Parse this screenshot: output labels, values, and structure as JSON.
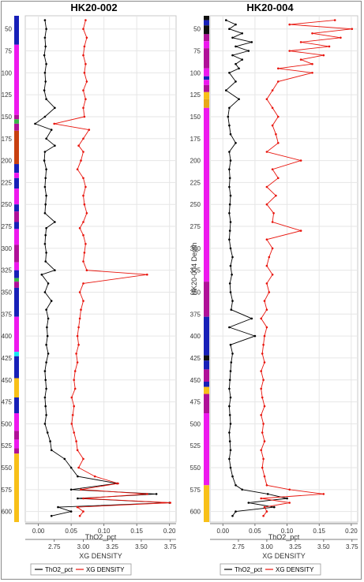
{
  "colors": {
    "thorium": "#000000",
    "density": "#e8140c",
    "lith_blue": "#1720b8",
    "lith_magenta": "#ee18ee",
    "lith_purple": "#b01098",
    "lith_orange": "#c84010",
    "lith_green": "#38b848",
    "lith_yellow": "#f8c018",
    "lith_cyan": "#18e8f0",
    "lith_black": "#101010",
    "lith_gold": "#e8a818"
  },
  "chart_data": [
    {
      "type": "line",
      "title": "HK20-002",
      "ylabel": "",
      "y_reversed": true,
      "ylim": [
        35,
        612
      ],
      "yticks": [
        50,
        75,
        100,
        125,
        150,
        175,
        200,
        225,
        250,
        275,
        300,
        325,
        350,
        375,
        400,
        425,
        450,
        475,
        500,
        525,
        550,
        575,
        600
      ],
      "x_axes": [
        {
          "label": "ThO2_pct",
          "lim": [
            -0.02,
            0.21
          ],
          "ticks": [
            0.0,
            0.05,
            0.1,
            0.15,
            0.2
          ],
          "tick_labels": [
            "0.00",
            "0.05",
            "0.10",
            "0.15",
            "0.20"
          ]
        },
        {
          "label": "XG DENSITY",
          "lim": [
            2.5,
            3.8
          ],
          "ticks": [
            2.75,
            3.0,
            3.25,
            3.5,
            3.75
          ],
          "tick_labels": [
            "2.75",
            "3.00",
            "3.25",
            "3.50",
            "3.75"
          ]
        }
      ],
      "series": [
        {
          "name": "ThO2_pct",
          "axis": 0,
          "color": "#000000",
          "depth": [
            40,
            50,
            60,
            70,
            80,
            90,
            100,
            110,
            120,
            130,
            140,
            150,
            158,
            165,
            175,
            183,
            190,
            200,
            210,
            220,
            230,
            240,
            250,
            260,
            270,
            277,
            285,
            295,
            305,
            315,
            325,
            330,
            340,
            350,
            360,
            370,
            380,
            390,
            400,
            410,
            420,
            430,
            440,
            450,
            460,
            470,
            480,
            490,
            500,
            510,
            520,
            530,
            540,
            550,
            560,
            568,
            575,
            580,
            585,
            590,
            595,
            600,
            605
          ],
          "values": [
            0.01,
            0.012,
            0.01,
            0.011,
            0.009,
            0.012,
            0.01,
            0.011,
            0.009,
            0.012,
            0.025,
            0.01,
            -0.005,
            0.02,
            0.012,
            0.025,
            0.01,
            0.009,
            0.012,
            0.011,
            0.01,
            0.012,
            0.011,
            0.01,
            0.025,
            0.012,
            0.011,
            0.01,
            0.012,
            0.011,
            0.025,
            0.005,
            0.015,
            0.01,
            0.02,
            0.012,
            0.015,
            0.013,
            0.014,
            0.012,
            0.015,
            0.012,
            0.01,
            0.011,
            0.012,
            0.01,
            0.011,
            0.012,
            0.01,
            0.014,
            0.018,
            0.02,
            0.04,
            0.05,
            0.06,
            0.12,
            0.05,
            0.18,
            0.06,
            0.2,
            0.03,
            0.05,
            0.02
          ]
        },
        {
          "name": "XG DENSITY",
          "axis": 1,
          "color": "#e8140c",
          "depth": [
            40,
            50,
            60,
            70,
            80,
            90,
            100,
            110,
            120,
            130,
            140,
            150,
            158,
            165,
            175,
            183,
            190,
            200,
            210,
            220,
            230,
            240,
            250,
            260,
            270,
            277,
            285,
            295,
            305,
            315,
            325,
            330,
            340,
            350,
            360,
            370,
            380,
            390,
            400,
            410,
            420,
            430,
            440,
            450,
            460,
            470,
            480,
            490,
            500,
            510,
            520,
            530,
            540,
            550,
            560,
            568,
            575,
            580,
            585,
            590,
            595,
            600,
            605
          ],
          "values": [
            3.02,
            3.0,
            3.03,
            3.01,
            3.0,
            3.02,
            3.01,
            3.03,
            3.0,
            3.02,
            3.0,
            3.01,
            2.75,
            3.05,
            3.0,
            2.96,
            3.0,
            2.98,
            2.95,
            3.0,
            3.02,
            3.0,
            3.01,
            3.03,
            3.0,
            2.97,
            3.0,
            3.02,
            3.01,
            3.0,
            3.03,
            3.55,
            3.0,
            2.97,
            3.0,
            2.98,
            2.97,
            2.96,
            2.95,
            2.96,
            2.94,
            2.95,
            2.93,
            2.92,
            2.93,
            2.9,
            2.92,
            2.91,
            2.9,
            2.92,
            2.94,
            2.95,
            3.0,
            2.96,
            3.1,
            3.3,
            2.98,
            3.55,
            3.0,
            3.75,
            2.95,
            3.0,
            2.97
          ]
        }
      ],
      "lithology": [
        {
          "from": 35,
          "to": 68,
          "color": "#1720b8"
        },
        {
          "from": 68,
          "to": 148,
          "color": "#ee18ee"
        },
        {
          "from": 148,
          "to": 153,
          "color": "#b01098"
        },
        {
          "from": 153,
          "to": 158,
          "color": "#38b848"
        },
        {
          "from": 158,
          "to": 166,
          "color": "#b01098"
        },
        {
          "from": 166,
          "to": 204,
          "color": "#c84010"
        },
        {
          "from": 204,
          "to": 214,
          "color": "#1720b8"
        },
        {
          "from": 214,
          "to": 220,
          "color": "#ee18ee"
        },
        {
          "from": 220,
          "to": 232,
          "color": "#1720b8"
        },
        {
          "from": 232,
          "to": 250,
          "color": "#ee18ee"
        },
        {
          "from": 250,
          "to": 258,
          "color": "#1720b8"
        },
        {
          "from": 258,
          "to": 270,
          "color": "#b01098"
        },
        {
          "from": 270,
          "to": 278,
          "color": "#1720b8"
        },
        {
          "from": 278,
          "to": 296,
          "color": "#ee18ee"
        },
        {
          "from": 296,
          "to": 316,
          "color": "#b01098"
        },
        {
          "from": 316,
          "to": 325,
          "color": "#ee18ee"
        },
        {
          "from": 325,
          "to": 334,
          "color": "#1720b8"
        },
        {
          "from": 334,
          "to": 338,
          "color": "#38b848"
        },
        {
          "from": 338,
          "to": 345,
          "color": "#b01098"
        },
        {
          "from": 345,
          "to": 378,
          "color": "#1720b8"
        },
        {
          "from": 378,
          "to": 418,
          "color": "#ee18ee"
        },
        {
          "from": 418,
          "to": 423,
          "color": "#18e8f0"
        },
        {
          "from": 423,
          "to": 448,
          "color": "#1720b8"
        },
        {
          "from": 448,
          "to": 470,
          "color": "#f8c018"
        },
        {
          "from": 470,
          "to": 488,
          "color": "#1720b8"
        },
        {
          "from": 488,
          "to": 508,
          "color": "#ee18ee"
        },
        {
          "from": 508,
          "to": 518,
          "color": "#b01098"
        },
        {
          "from": 518,
          "to": 528,
          "color": "#ee18ee"
        },
        {
          "from": 528,
          "to": 534,
          "color": "#b01098"
        },
        {
          "from": 534,
          "to": 612,
          "color": "#f8c018"
        }
      ]
    },
    {
      "type": "line",
      "title": "HK20-004",
      "ylabel": "HK20-004 Depth",
      "y_reversed": true,
      "ylim": [
        35,
        612
      ],
      "yticks": [
        50,
        75,
        100,
        125,
        150,
        175,
        200,
        225,
        250,
        275,
        300,
        325,
        350,
        375,
        400,
        425,
        450,
        475,
        500,
        525,
        550,
        575,
        600
      ],
      "x_axes": [
        {
          "label": "ThO2_pct",
          "lim": [
            -0.02,
            0.21
          ],
          "ticks": [
            0.0,
            0.05,
            0.1,
            0.15,
            0.2
          ],
          "tick_labels": [
            "0.00",
            "0.05",
            "0.10",
            "0.15",
            "0.20"
          ]
        },
        {
          "label": "XG DENSITY",
          "lim": [
            2.5,
            3.8
          ],
          "ticks": [
            2.75,
            3.0,
            3.25,
            3.5,
            3.75
          ],
          "tick_labels": [
            "2.75",
            "3.00",
            "3.25",
            "3.50",
            "3.75"
          ]
        }
      ],
      "series": [
        {
          "name": "ThO2_pct",
          "axis": 0,
          "color": "#000000",
          "depth": [
            40,
            45,
            50,
            55,
            60,
            65,
            70,
            75,
            80,
            85,
            90,
            95,
            100,
            110,
            120,
            130,
            140,
            150,
            160,
            170,
            180,
            190,
            200,
            210,
            220,
            230,
            240,
            250,
            260,
            270,
            280,
            290,
            300,
            310,
            320,
            330,
            340,
            350,
            360,
            370,
            380,
            390,
            400,
            410,
            420,
            430,
            440,
            450,
            460,
            470,
            480,
            490,
            500,
            510,
            520,
            530,
            540,
            550,
            560,
            570,
            575,
            580,
            585,
            590,
            595,
            600,
            605
          ],
          "values": [
            0.005,
            0.02,
            0.01,
            0.03,
            0.015,
            0.045,
            0.02,
            0.04,
            0.015,
            0.03,
            0.02,
            0.025,
            0.01,
            0.02,
            0.005,
            0.025,
            0.01,
            0.008,
            0.01,
            0.012,
            0.02,
            0.01,
            0.012,
            0.01,
            0.011,
            0.01,
            0.012,
            0.011,
            0.01,
            0.012,
            0.011,
            0.01,
            0.012,
            0.015,
            0.012,
            0.014,
            0.011,
            0.012,
            0.015,
            0.013,
            0.045,
            0.01,
            0.05,
            0.012,
            0.015,
            0.013,
            0.012,
            0.011,
            0.01,
            0.012,
            0.01,
            0.011,
            0.012,
            0.01,
            0.011,
            0.012,
            0.01,
            0.012,
            0.015,
            0.02,
            0.03,
            0.07,
            0.1,
            0.04,
            0.08,
            0.02,
            0.015
          ]
        },
        {
          "name": "XG DENSITY",
          "axis": 1,
          "color": "#e8140c",
          "depth": [
            40,
            45,
            50,
            55,
            60,
            65,
            70,
            75,
            80,
            85,
            90,
            95,
            100,
            110,
            120,
            130,
            140,
            150,
            160,
            170,
            180,
            190,
            200,
            210,
            220,
            230,
            240,
            250,
            260,
            270,
            280,
            290,
            300,
            310,
            320,
            330,
            340,
            350,
            360,
            370,
            380,
            390,
            400,
            410,
            420,
            430,
            440,
            450,
            460,
            470,
            480,
            490,
            500,
            510,
            520,
            530,
            540,
            550,
            560,
            570,
            575,
            580,
            585,
            590,
            595,
            600,
            605
          ],
          "values": [
            3.6,
            3.2,
            3.75,
            3.4,
            3.65,
            3.3,
            3.55,
            3.2,
            3.5,
            3.3,
            3.4,
            3.1,
            3.4,
            3.1,
            3.05,
            3.0,
            3.05,
            3.1,
            3.05,
            3.08,
            3.1,
            3.0,
            3.3,
            3.05,
            3.1,
            3.0,
            3.08,
            3.0,
            3.06,
            3.05,
            3.3,
            3.0,
            3.05,
            3.02,
            3.0,
            3.05,
            3.0,
            3.02,
            2.98,
            3.0,
            2.95,
            3.0,
            2.98,
            2.97,
            2.96,
            2.98,
            2.95,
            2.97,
            2.95,
            2.96,
            2.98,
            2.95,
            2.97,
            2.96,
            2.98,
            2.95,
            2.97,
            2.96,
            2.98,
            3.0,
            3.2,
            3.5,
            2.95,
            3.2,
            2.98,
            3.0,
            2.97
          ]
        }
      ],
      "lithology": [
        {
          "from": 35,
          "to": 40,
          "color": "#101010"
        },
        {
          "from": 40,
          "to": 46,
          "color": "#1720b8"
        },
        {
          "from": 46,
          "to": 56,
          "color": "#101010"
        },
        {
          "from": 56,
          "to": 64,
          "color": "#b01098"
        },
        {
          "from": 64,
          "to": 72,
          "color": "#ee18ee"
        },
        {
          "from": 72,
          "to": 95,
          "color": "#b01098"
        },
        {
          "from": 95,
          "to": 104,
          "color": "#ee18ee"
        },
        {
          "from": 104,
          "to": 108,
          "color": "#1720b8"
        },
        {
          "from": 108,
          "to": 114,
          "color": "#ee18ee"
        },
        {
          "from": 114,
          "to": 122,
          "color": "#b01098"
        },
        {
          "from": 122,
          "to": 130,
          "color": "#f8c018"
        },
        {
          "from": 130,
          "to": 140,
          "color": "#e8a818"
        },
        {
          "from": 140,
          "to": 338,
          "color": "#ee18ee"
        },
        {
          "from": 338,
          "to": 378,
          "color": "#b01098"
        },
        {
          "from": 378,
          "to": 422,
          "color": "#1720b8"
        },
        {
          "from": 422,
          "to": 428,
          "color": "#101010"
        },
        {
          "from": 428,
          "to": 438,
          "color": "#1720b8"
        },
        {
          "from": 438,
          "to": 452,
          "color": "#b01098"
        },
        {
          "from": 452,
          "to": 458,
          "color": "#1720b8"
        },
        {
          "from": 458,
          "to": 466,
          "color": "#f8c018"
        },
        {
          "from": 466,
          "to": 488,
          "color": "#b01098"
        },
        {
          "from": 488,
          "to": 570,
          "color": "#ee18ee"
        },
        {
          "from": 570,
          "to": 612,
          "color": "#f8c018"
        }
      ]
    }
  ]
}
